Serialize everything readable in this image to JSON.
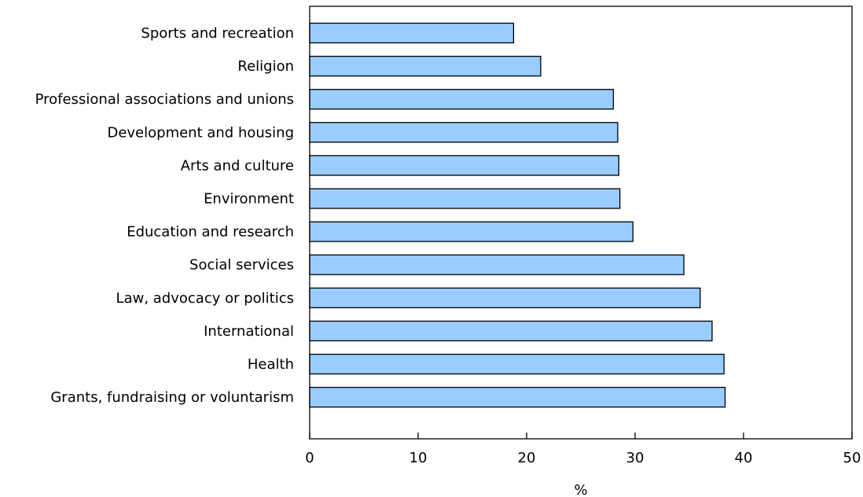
{
  "chart_data": {
    "type": "bar",
    "orientation": "horizontal",
    "categories": [
      "Sports and recreation",
      "Religion",
      "Professional associations and unions",
      "Development and housing",
      "Arts and culture",
      "Environment",
      "Education and research",
      "Social services",
      "Law, advocacy or politics",
      "International",
      "Health",
      "Grants, fundraising or voluntarism"
    ],
    "values": [
      18.8,
      21.3,
      28.0,
      28.4,
      28.5,
      28.6,
      29.8,
      34.5,
      36.0,
      37.1,
      38.2,
      38.3
    ],
    "xlabel": "%",
    "ylabel": "",
    "xlim": [
      0,
      50
    ],
    "xticks": [
      "0",
      "10",
      "20",
      "30",
      "40",
      "50"
    ],
    "grid": false,
    "bar_color": "#99ccff",
    "bar_edge_color": "#000000"
  }
}
